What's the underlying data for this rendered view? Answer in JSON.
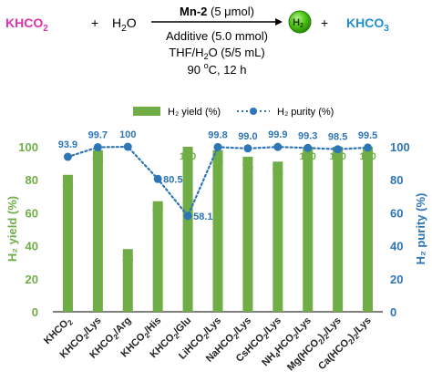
{
  "reaction": {
    "reactant1": "KHCO",
    "reactant1_sub": "2",
    "plus1": "+",
    "water": "H",
    "water_sub": "2",
    "water_tail": "O",
    "catalyst_bold": "Mn-2",
    "catalyst_amount": " (5 μmol)",
    "condition1": "Additive (5.0 mmol)",
    "condition2": "THF/H",
    "condition2_sub": "2",
    "condition2_tail": "O (5/5 mL)",
    "condition3_pre": "90 ",
    "condition3_sup": "o",
    "condition3_post": "C, 12 h",
    "product_badge": "H",
    "product_badge_sub": "2",
    "plus2": "+",
    "byproduct": "KHCO",
    "byproduct_sub": "3",
    "colors": {
      "reactant": "#e030b0",
      "byproduct": "#1f8fd0",
      "badge": "#4cc414"
    }
  },
  "chart_data": {
    "type": "bar+line",
    "categories": [
      {
        "main": "KHCO",
        "sub": "2",
        "tail": ""
      },
      {
        "main": "KHCO",
        "sub": "2",
        "tail": "/Lys"
      },
      {
        "main": "KHCO",
        "sub": "2",
        "tail": "/Arg"
      },
      {
        "main": "KHCO",
        "sub": "2",
        "tail": "/His"
      },
      {
        "main": "KHCO",
        "sub": "2",
        "tail": "/Glu"
      },
      {
        "main": "LiHCO",
        "sub": "2",
        "tail": "/Lys"
      },
      {
        "main": "NaHCO",
        "sub": "2",
        "tail": "/Lys"
      },
      {
        "main": "CsHCO",
        "sub": "2",
        "tail": "/Lys"
      },
      {
        "main": "NH",
        "sub": "4",
        "tail": "HCO",
        "sub2": "2",
        "tail2": "/Lys"
      },
      {
        "main": "Mg(HCO",
        "sub": "2",
        "tail": ")",
        "sub2": "2",
        "tail2": "/Lys"
      },
      {
        "main": "Ca(HCO",
        "sub": "2",
        "tail": ")",
        "sub2": "2",
        "tail2": "/Lys"
      }
    ],
    "series": [
      {
        "name": "H₂ yield (%)",
        "type": "bar",
        "color": "#70ad47",
        "values": [
          83,
          98,
          38,
          67,
          100,
          98,
          94,
          91,
          100,
          100,
          100
        ],
        "labels": [
          "83",
          "98",
          "38",
          "67",
          "100",
          "98",
          "94",
          "91",
          "100",
          "100",
          "100"
        ]
      },
      {
        "name": "H₂ purity (%)",
        "type": "line",
        "color": "#2e75b6",
        "values": [
          93.9,
          99.7,
          100,
          80.5,
          58.1,
          99.8,
          99.0,
          99.9,
          99.3,
          98.5,
          99.5
        ],
        "labels": [
          "93.9",
          "99.7",
          "100",
          "80.5",
          "58.1",
          "99.8",
          "99.0",
          "99.9",
          "99.3",
          "98.5",
          "99.5"
        ]
      }
    ],
    "ylabel_left": "H₂ yield (%)",
    "ylabel_right": "H₂ purity (%)",
    "ylim": [
      0,
      100
    ],
    "yticks": [
      "0",
      "20",
      "40",
      "60",
      "80",
      "100"
    ],
    "legend_position": "top",
    "grid": false
  }
}
